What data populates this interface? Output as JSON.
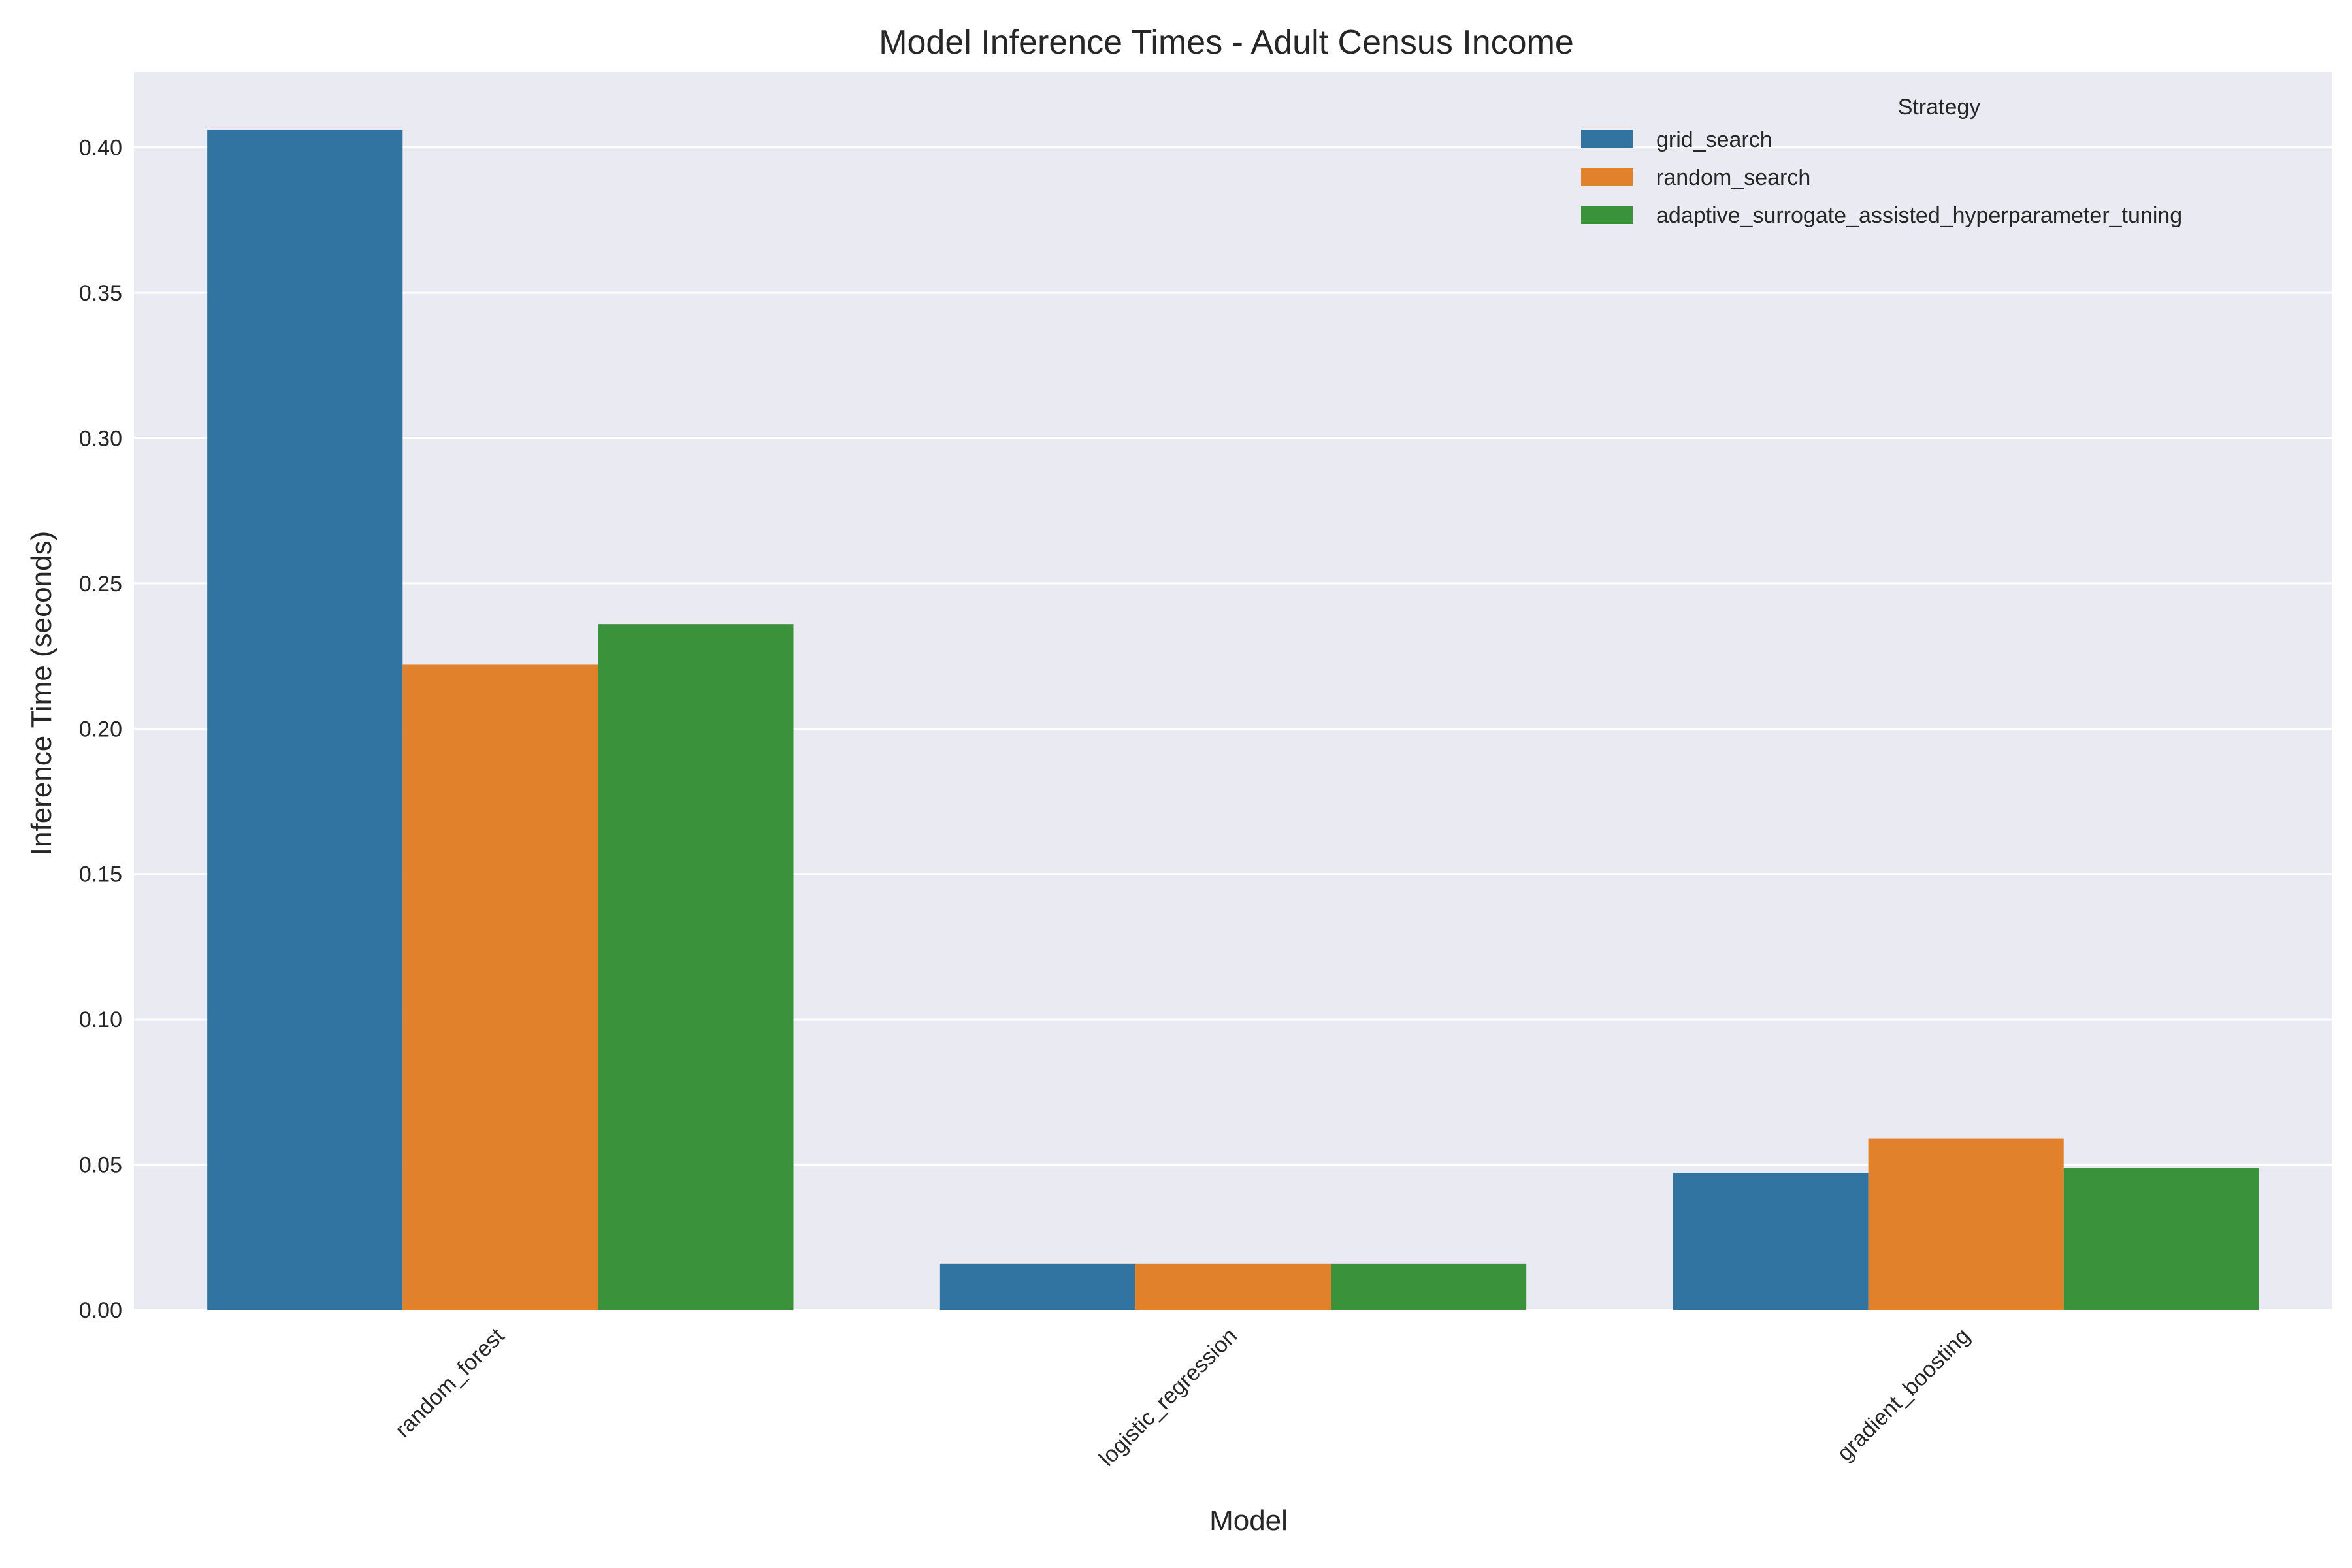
{
  "chart_data": {
    "type": "bar",
    "title": "Model Inference Times - Adult Census Income",
    "xlabel": "Model",
    "ylabel": "Inference Time (seconds)",
    "categories": [
      "random_forest",
      "logistic_regression",
      "gradient_boosting"
    ],
    "series": [
      {
        "name": "grid_search",
        "color": "#3274a1",
        "values": [
          0.406,
          0.016,
          0.047
        ]
      },
      {
        "name": "random_search",
        "color": "#e1812c",
        "values": [
          0.222,
          0.016,
          0.059
        ]
      },
      {
        "name": "adaptive_surrogate_assisted_hyperparameter_tuning",
        "color": "#3a923a",
        "values": [
          0.236,
          0.016,
          0.049
        ]
      }
    ],
    "ylim": [
      0,
      0.426
    ],
    "yticks": [
      "0.00",
      "0.05",
      "0.10",
      "0.15",
      "0.20",
      "0.25",
      "0.30",
      "0.35",
      "0.40"
    ],
    "legend": {
      "title": "Strategy",
      "placement": "top-right"
    },
    "grid": true,
    "plot_background": "#eaeaf2"
  }
}
